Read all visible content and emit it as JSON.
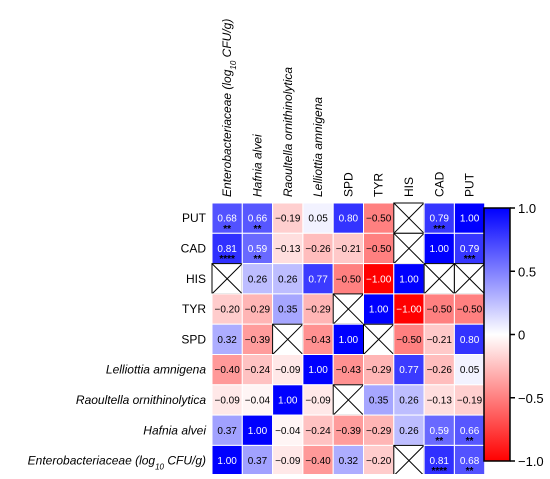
{
  "chart_data": {
    "type": "heatmap",
    "columns": [
      {
        "label": "Enterobacteriaceae (log10 CFU/g)",
        "italic": true
      },
      {
        "label": "Hafnia alvei",
        "italic": true
      },
      {
        "label": "Raoultella ornithinolytica",
        "italic": true
      },
      {
        "label": "Lelliottia amnigena",
        "italic": true
      },
      {
        "label": "SPD",
        "italic": false
      },
      {
        "label": "TYR",
        "italic": false
      },
      {
        "label": "HIS",
        "italic": false
      },
      {
        "label": "CAD",
        "italic": false
      },
      {
        "label": "PUT",
        "italic": false
      }
    ],
    "rows": [
      {
        "label": "PUT",
        "italic": false
      },
      {
        "label": "CAD",
        "italic": false
      },
      {
        "label": "HIS",
        "italic": false
      },
      {
        "label": "TYR",
        "italic": false
      },
      {
        "label": "SPD",
        "italic": false
      },
      {
        "label": "Lelliottia amnigena",
        "italic": true
      },
      {
        "label": "Raoultella ornithinolytica",
        "italic": true
      },
      {
        "label": "Hafnia alvei",
        "italic": true
      },
      {
        "label": "Enterobacteriaceae (log10 CFU/g)",
        "italic": true
      }
    ],
    "values": [
      [
        0.68,
        0.66,
        -0.19,
        0.05,
        0.8,
        -0.5,
        null,
        0.79,
        1.0
      ],
      [
        0.81,
        0.59,
        -0.13,
        -0.26,
        -0.21,
        -0.5,
        null,
        1.0,
        0.79
      ],
      [
        null,
        0.26,
        0.26,
        0.77,
        -0.5,
        -1.0,
        1.0,
        null,
        null
      ],
      [
        -0.2,
        -0.29,
        0.35,
        -0.29,
        null,
        1.0,
        -1.0,
        -0.5,
        -0.5
      ],
      [
        0.32,
        -0.39,
        null,
        -0.43,
        1.0,
        null,
        -0.5,
        -0.21,
        0.8
      ],
      [
        -0.4,
        -0.24,
        -0.09,
        1.0,
        -0.43,
        -0.29,
        0.77,
        -0.26,
        0.05
      ],
      [
        -0.09,
        -0.04,
        1.0,
        -0.09,
        null,
        0.35,
        0.26,
        -0.13,
        -0.19
      ],
      [
        0.37,
        1.0,
        -0.04,
        -0.24,
        -0.39,
        -0.29,
        0.26,
        0.59,
        0.66
      ],
      [
        1.0,
        0.37,
        -0.09,
        -0.4,
        0.32,
        -0.2,
        null,
        0.81,
        0.68
      ]
    ],
    "value_labels": [
      [
        "0.68",
        "0.66",
        "−0.19",
        "0.05",
        "0.80",
        "−0.50",
        "",
        "0.79",
        "1.00"
      ],
      [
        "0.81",
        "0.59",
        "−0.13",
        "−0.26",
        "−0.21",
        "−0.50",
        "",
        "1.00",
        "0.79"
      ],
      [
        "",
        "0.26",
        "0.26",
        "0.77",
        "−0.50",
        "−1.00",
        "1.00",
        "",
        ""
      ],
      [
        "−0.20",
        "−0.29",
        "0.35",
        "−0.29",
        "",
        "1.00",
        "−1.00",
        "−0.50",
        "−0.50"
      ],
      [
        "0.32",
        "−0.39",
        "",
        "−0.43",
        "1.00",
        "",
        "−0.50",
        "−0.21",
        "0.80"
      ],
      [
        "−0.40",
        "−0.24",
        "−0.09",
        "1.00",
        "−0.43",
        "−0.29",
        "0.77",
        "−0.26",
        "0.05"
      ],
      [
        "−0.09",
        "−0.04",
        "1.00",
        "−0.09",
        "",
        "0.35",
        "0.26",
        "−0.13",
        "−0.19"
      ],
      [
        "0.37",
        "1.00",
        "−0.04",
        "−0.24",
        "−0.39",
        "−0.29",
        "0.26",
        "0.59",
        "0.66"
      ],
      [
        "1.00",
        "0.37",
        "−0.09",
        "−0.40",
        "0.32",
        "−0.20",
        "",
        "0.81",
        "0.68"
      ]
    ],
    "significance": [
      [
        "**",
        "**",
        "",
        "",
        "",
        "",
        "",
        "***",
        ""
      ],
      [
        "****",
        "**",
        "",
        "",
        "",
        "",
        "",
        "",
        "***"
      ],
      [
        "",
        "",
        "",
        "",
        "",
        "",
        "",
        "",
        ""
      ],
      [
        "",
        "",
        "",
        "",
        "",
        "",
        "",
        "",
        ""
      ],
      [
        "",
        "",
        "",
        "",
        "",
        "",
        "",
        "",
        ""
      ],
      [
        "",
        "",
        "",
        "",
        "",
        "",
        "",
        "",
        ""
      ],
      [
        "",
        "",
        "",
        "",
        "",
        "",
        "",
        "",
        ""
      ],
      [
        "",
        "",
        "",
        "",
        "",
        "",
        "",
        "**",
        "**"
      ],
      [
        "",
        "",
        "",
        "",
        "",
        "",
        "",
        "****",
        "**"
      ]
    ],
    "colorbar": {
      "range": [
        -1.0,
        1.0
      ],
      "ticks": [
        {
          "value": 1.0,
          "label": "1.0"
        },
        {
          "value": 0.5,
          "label": "0.5"
        },
        {
          "value": 0.0,
          "label": "0"
        },
        {
          "value": -0.5,
          "label": "−0.5"
        },
        {
          "value": -1.0,
          "label": "−1.0"
        }
      ],
      "colors": {
        "negative": "#ff0000",
        "zero": "#ffffff",
        "positive": "#0000ff"
      }
    },
    "missing_cell_style": "crossed-box"
  }
}
